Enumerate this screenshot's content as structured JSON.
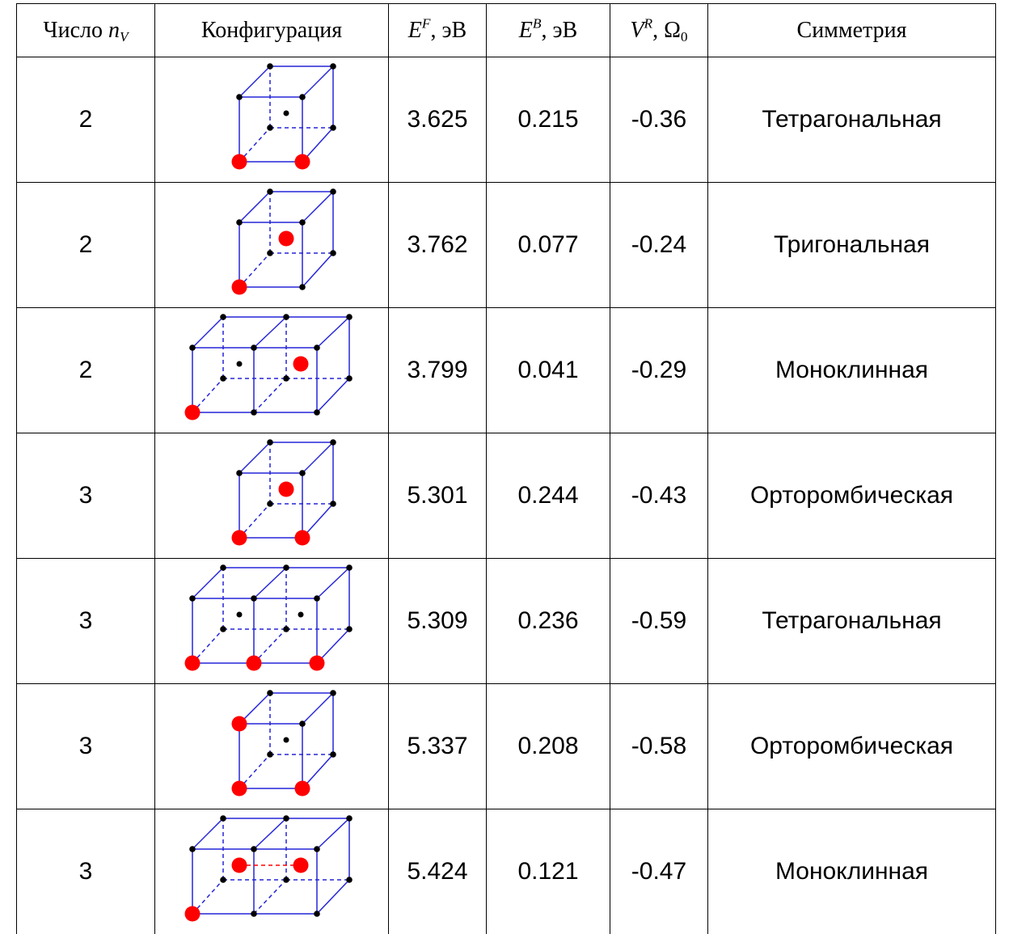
{
  "header": {
    "col_n_prefix": "Число ",
    "col_n_var": "n",
    "col_n_sub": "V",
    "col_config": "Конфигурация",
    "col_ef_var": "E",
    "col_ef_sup": "F",
    "col_ef_unit": ", эВ",
    "col_eb_var": "E",
    "col_eb_sup": "B",
    "col_eb_unit": ", эВ",
    "col_vr_var": "V",
    "col_vr_sup": "R",
    "col_vr_unit": ", Ω",
    "col_vr_sub": "0",
    "col_symmetry": "Симметрия"
  },
  "colors": {
    "edge": "#2525d9",
    "vacancy": "#ff0000",
    "atom": "#000000"
  },
  "rows": [
    {
      "n": "2",
      "config_icon": "cube-two-bottom-front-vacancies",
      "ef": "3.625",
      "eb": "0.215",
      "vr": "-0.36",
      "symmetry": "Тетрагональная"
    },
    {
      "n": "2",
      "config_icon": "cube-corner-and-center-vacancies",
      "ef": "3.762",
      "eb": "0.077",
      "vr": "-0.24",
      "symmetry": "Тригональная"
    },
    {
      "n": "2",
      "config_icon": "double-cube-corner-and-second-center-vacancies",
      "ef": "3.799",
      "eb": "0.041",
      "vr": "-0.29",
      "symmetry": "Моноклинная"
    },
    {
      "n": "3",
      "config_icon": "cube-two-corners-and-center-vacancies",
      "ef": "5.301",
      "eb": "0.244",
      "vr": "-0.43",
      "symmetry": "Орторомбическая"
    },
    {
      "n": "3",
      "config_icon": "double-cube-three-bottom-front-vacancies",
      "ef": "5.309",
      "eb": "0.236",
      "vr": "-0.59",
      "symmetry": "Тетрагональная"
    },
    {
      "n": "3",
      "config_icon": "cube-three-front-face-corner-vacancies",
      "ef": "5.337",
      "eb": "0.208",
      "vr": "-0.58",
      "symmetry": "Орторомбическая"
    },
    {
      "n": "3",
      "config_icon": "double-cube-corner-and-two-center-vacancies",
      "ef": "5.424",
      "eb": "0.121",
      "vr": "-0.47",
      "symmetry": "Моноклинная"
    }
  ]
}
